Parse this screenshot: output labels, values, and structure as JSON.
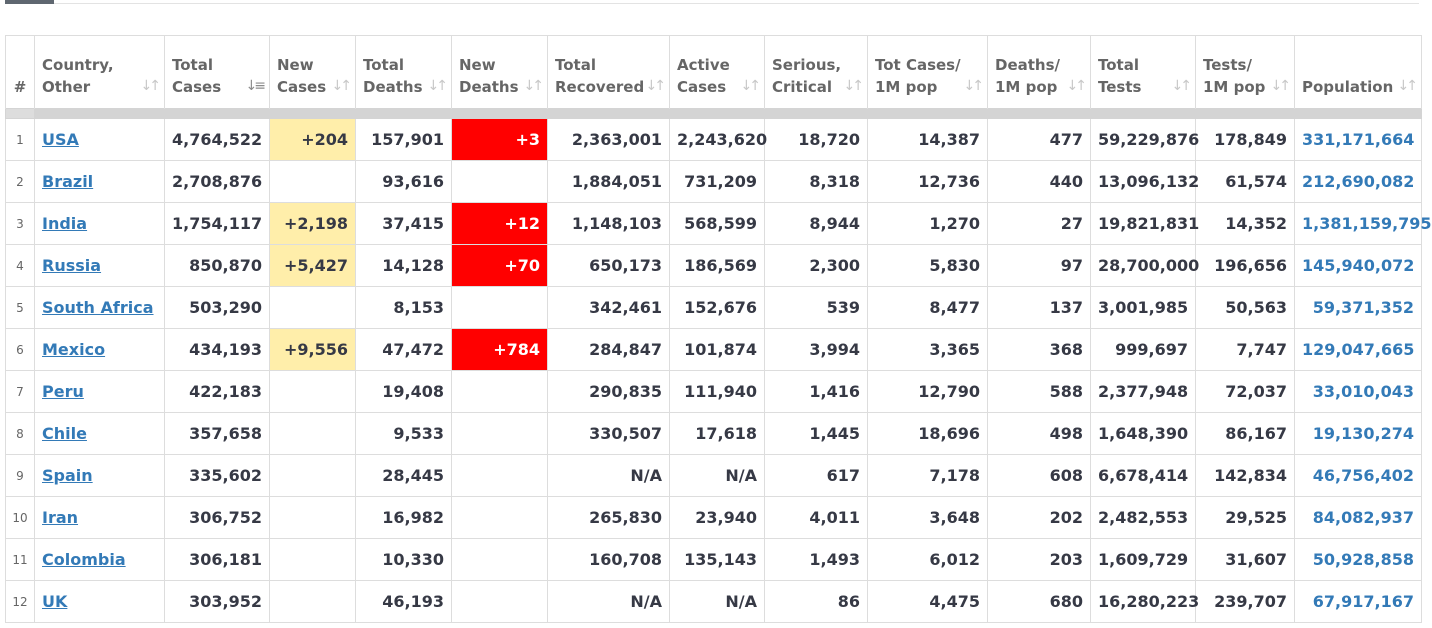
{
  "colors": {
    "link": "#337ab7",
    "new_cases_highlight": "#FFEEAA",
    "new_deaths_highlight": "#ff0000",
    "text": "#363945",
    "header_text": "#666666"
  },
  "icons": {
    "sort_inactive": "sort-arrows-icon",
    "sort_active": "sort-descending-icon"
  },
  "header": {
    "c0": [
      "#"
    ],
    "c1": [
      "Country,",
      "Other"
    ],
    "c2": [
      "Total",
      "Cases"
    ],
    "c3": [
      "New",
      "Cases"
    ],
    "c4": [
      "Total",
      "Deaths"
    ],
    "c5": [
      "New",
      "Deaths"
    ],
    "c6": [
      "Total",
      "Recovered"
    ],
    "c7": [
      "Active",
      "Cases"
    ],
    "c8": [
      "Serious,",
      "Critical"
    ],
    "c9": [
      "Tot Cases/",
      "1M pop"
    ],
    "c10": [
      "Deaths/",
      "1M pop"
    ],
    "c11": [
      "Total",
      "Tests"
    ],
    "c12": [
      "Tests/",
      "1M pop"
    ],
    "c13": [
      "Population"
    ]
  },
  "rows": [
    {
      "idx": "1",
      "country": "USA",
      "total_cases": "4,764,522",
      "new_cases": "+204",
      "total_deaths": "157,901",
      "new_deaths": "+3",
      "total_recovered": "2,363,001",
      "active_cases": "2,243,620",
      "serious_critical": "18,720",
      "cases_per_1m": "14,387",
      "deaths_per_1m": "477",
      "total_tests": "59,229,876",
      "tests_per_1m": "178,849",
      "population": "331,171,664"
    },
    {
      "idx": "2",
      "country": "Brazil",
      "total_cases": "2,708,876",
      "new_cases": "",
      "total_deaths": "93,616",
      "new_deaths": "",
      "total_recovered": "1,884,051",
      "active_cases": "731,209",
      "serious_critical": "8,318",
      "cases_per_1m": "12,736",
      "deaths_per_1m": "440",
      "total_tests": "13,096,132",
      "tests_per_1m": "61,574",
      "population": "212,690,082"
    },
    {
      "idx": "3",
      "country": "India",
      "total_cases": "1,754,117",
      "new_cases": "+2,198",
      "total_deaths": "37,415",
      "new_deaths": "+12",
      "total_recovered": "1,148,103",
      "active_cases": "568,599",
      "serious_critical": "8,944",
      "cases_per_1m": "1,270",
      "deaths_per_1m": "27",
      "total_tests": "19,821,831",
      "tests_per_1m": "14,352",
      "population": "1,381,159,795"
    },
    {
      "idx": "4",
      "country": "Russia",
      "total_cases": "850,870",
      "new_cases": "+5,427",
      "total_deaths": "14,128",
      "new_deaths": "+70",
      "total_recovered": "650,173",
      "active_cases": "186,569",
      "serious_critical": "2,300",
      "cases_per_1m": "5,830",
      "deaths_per_1m": "97",
      "total_tests": "28,700,000",
      "tests_per_1m": "196,656",
      "population": "145,940,072"
    },
    {
      "idx": "5",
      "country": "South Africa",
      "total_cases": "503,290",
      "new_cases": "",
      "total_deaths": "8,153",
      "new_deaths": "",
      "total_recovered": "342,461",
      "active_cases": "152,676",
      "serious_critical": "539",
      "cases_per_1m": "8,477",
      "deaths_per_1m": "137",
      "total_tests": "3,001,985",
      "tests_per_1m": "50,563",
      "population": "59,371,352"
    },
    {
      "idx": "6",
      "country": "Mexico",
      "total_cases": "434,193",
      "new_cases": "+9,556",
      "total_deaths": "47,472",
      "new_deaths": "+784",
      "total_recovered": "284,847",
      "active_cases": "101,874",
      "serious_critical": "3,994",
      "cases_per_1m": "3,365",
      "deaths_per_1m": "368",
      "total_tests": "999,697",
      "tests_per_1m": "7,747",
      "population": "129,047,665"
    },
    {
      "idx": "7",
      "country": "Peru",
      "total_cases": "422,183",
      "new_cases": "",
      "total_deaths": "19,408",
      "new_deaths": "",
      "total_recovered": "290,835",
      "active_cases": "111,940",
      "serious_critical": "1,416",
      "cases_per_1m": "12,790",
      "deaths_per_1m": "588",
      "total_tests": "2,377,948",
      "tests_per_1m": "72,037",
      "population": "33,010,043"
    },
    {
      "idx": "8",
      "country": "Chile",
      "total_cases": "357,658",
      "new_cases": "",
      "total_deaths": "9,533",
      "new_deaths": "",
      "total_recovered": "330,507",
      "active_cases": "17,618",
      "serious_critical": "1,445",
      "cases_per_1m": "18,696",
      "deaths_per_1m": "498",
      "total_tests": "1,648,390",
      "tests_per_1m": "86,167",
      "population": "19,130,274"
    },
    {
      "idx": "9",
      "country": "Spain",
      "total_cases": "335,602",
      "new_cases": "",
      "total_deaths": "28,445",
      "new_deaths": "",
      "total_recovered": "N/A",
      "active_cases": "N/A",
      "serious_critical": "617",
      "cases_per_1m": "7,178",
      "deaths_per_1m": "608",
      "total_tests": "6,678,414",
      "tests_per_1m": "142,834",
      "population": "46,756,402"
    },
    {
      "idx": "10",
      "country": "Iran",
      "total_cases": "306,752",
      "new_cases": "",
      "total_deaths": "16,982",
      "new_deaths": "",
      "total_recovered": "265,830",
      "active_cases": "23,940",
      "serious_critical": "4,011",
      "cases_per_1m": "3,648",
      "deaths_per_1m": "202",
      "total_tests": "2,482,553",
      "tests_per_1m": "29,525",
      "population": "84,082,937"
    },
    {
      "idx": "11",
      "country": "Colombia",
      "total_cases": "306,181",
      "new_cases": "",
      "total_deaths": "10,330",
      "new_deaths": "",
      "total_recovered": "160,708",
      "active_cases": "135,143",
      "serious_critical": "1,493",
      "cases_per_1m": "6,012",
      "deaths_per_1m": "203",
      "total_tests": "1,609,729",
      "tests_per_1m": "31,607",
      "population": "50,928,858"
    },
    {
      "idx": "12",
      "country": "UK",
      "total_cases": "303,952",
      "new_cases": "",
      "total_deaths": "46,193",
      "new_deaths": "",
      "total_recovered": "N/A",
      "active_cases": "N/A",
      "serious_critical": "86",
      "cases_per_1m": "4,475",
      "deaths_per_1m": "680",
      "total_tests": "16,280,223",
      "tests_per_1m": "239,707",
      "population": "67,917,167"
    }
  ]
}
